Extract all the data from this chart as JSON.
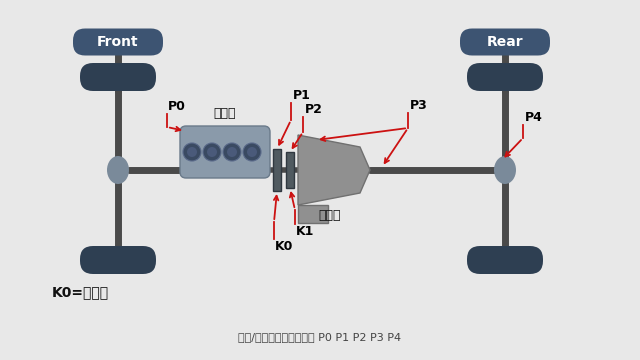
{
  "bg_color": "#e8e8e8",
  "white_area": "#f4f4f4",
  "dark_blue": "#3d5472",
  "tire_color": "#2e3f52",
  "shaft_color": "#4a4a4a",
  "engine_body": "#8a9aaa",
  "engine_inner": "#3a4a62",
  "engine_inner2": "#4a5a7a",
  "k_disk_color": "#505a60",
  "k_disk_edge": "#303840",
  "trans_color": "#909090",
  "trans_edge": "#707070",
  "axle_node_color": "#7a8a9a",
  "arrow_color": "#cc1111",
  "title_text": "混动/电动车上电机的位置 P0 P1 P2 P3 P4",
  "front_label": "Front",
  "rear_label": "Rear",
  "engine_label": "发动机",
  "transmission_label": "变速筱",
  "k0_eq_label": "K0=离合器"
}
